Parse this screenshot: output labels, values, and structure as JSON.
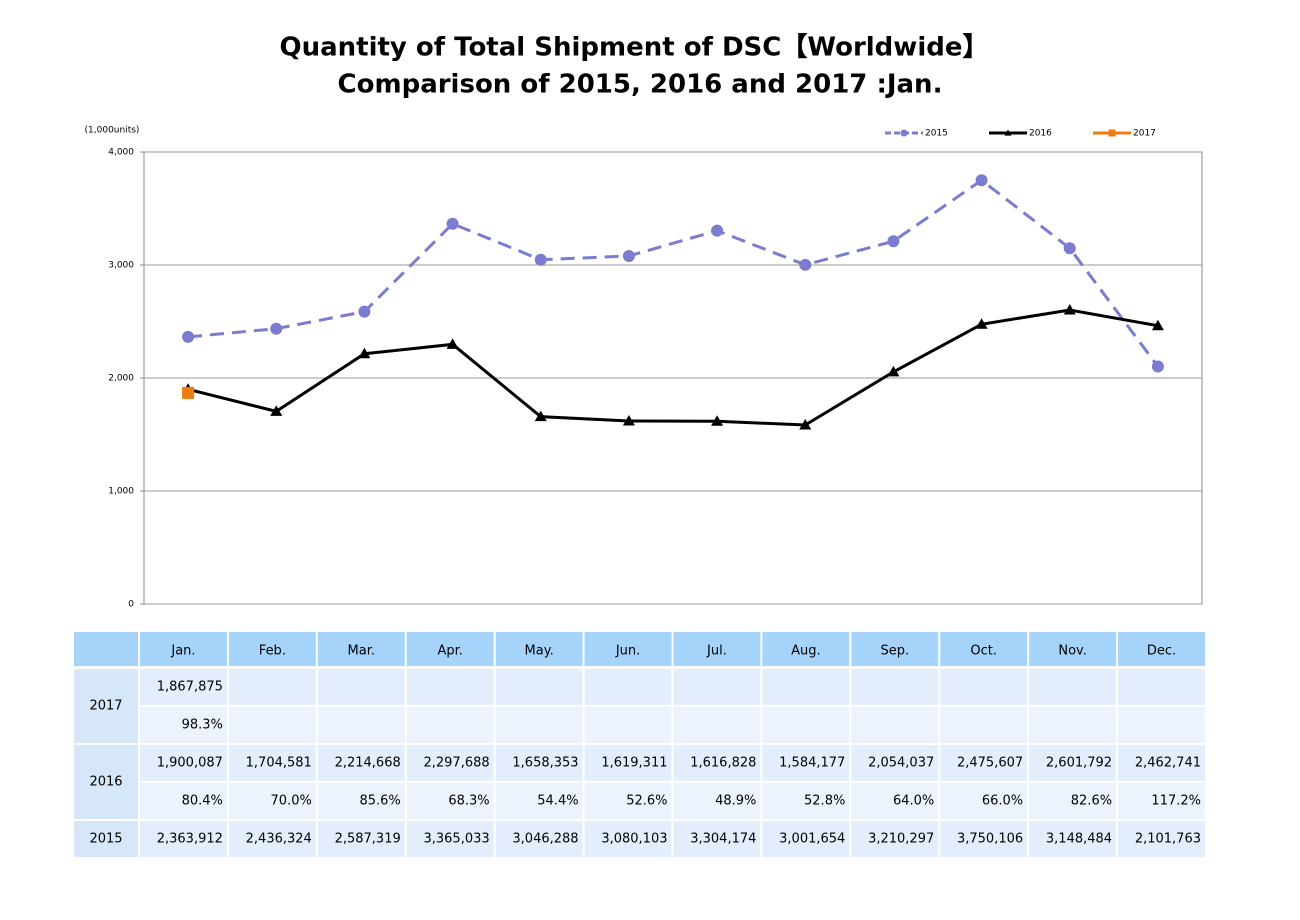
{
  "chart_data": {
    "type": "line",
    "title": "Quantity of Total Shipment of DSC【Worldwide】",
    "subtitle": "Comparison of 2015, 2016 and 2017 :Jan.",
    "y_label": "(1,000units)",
    "categories": [
      "Jan.",
      "Feb.",
      "Mar.",
      "Apr.",
      "May.",
      "Jun.",
      "Jul.",
      "Aug.",
      "Sep.",
      "Oct.",
      "Nov.",
      "Dec."
    ],
    "series": [
      {
        "name": "2015",
        "color": "#7b7bcf",
        "dashed": true,
        "marker": "circle",
        "values": [
          2363.912,
          2436.324,
          2587.319,
          3365.033,
          3046.288,
          3080.103,
          3304.174,
          3001.654,
          3210.297,
          3750.106,
          3148.484,
          2101.763
        ]
      },
      {
        "name": "2016",
        "color": "#000000",
        "dashed": false,
        "marker": "triangle",
        "values": [
          1900.087,
          1704.581,
          2214.668,
          2297.688,
          1658.353,
          1619.311,
          1616.828,
          1584.177,
          2054.037,
          2475.607,
          2601.792,
          2462.741
        ]
      },
      {
        "name": "2017",
        "color": "#f07c10",
        "dashed": false,
        "marker": "square",
        "values": [
          1867.875,
          null,
          null,
          null,
          null,
          null,
          null,
          null,
          null,
          null,
          null,
          null
        ]
      }
    ],
    "ylim": [
      0,
      4000
    ],
    "yticks": [
      0,
      {
        "value": 1000,
        "label": "1,000"
      },
      {
        "value": 2000,
        "label": "2,000"
      },
      {
        "value": 3000,
        "label": "3,000"
      },
      {
        "value": 4000,
        "label": "4,000"
      }
    ],
    "grid": true,
    "legend": "top-right"
  },
  "table": {
    "rows": [
      {
        "label": "2017",
        "values": [
          "1,867,875"
        ],
        "ratios": [
          "98.3%"
        ]
      },
      {
        "label": "2016",
        "values": [
          "1,900,087",
          "1,704,581",
          "2,214,668",
          "2,297,688",
          "1,658,353",
          "1,619,311",
          "1,616,828",
          "1,584,177",
          "2,054,037",
          "2,475,607",
          "2,601,792",
          "2,462,741"
        ],
        "ratios": [
          "80.4%",
          "70.0%",
          "85.6%",
          "68.3%",
          "54.4%",
          "52.6%",
          "48.9%",
          "52.8%",
          "64.0%",
          "66.0%",
          "82.6%",
          "117.2%"
        ]
      },
      {
        "label": "2015",
        "values": [
          "2,363,912",
          "2,436,324",
          "2,587,319",
          "3,365,033",
          "3,046,288",
          "3,080,103",
          "3,304,174",
          "3,001,654",
          "3,210,297",
          "3,750,106",
          "3,148,484",
          "2,101,763"
        ]
      }
    ]
  }
}
